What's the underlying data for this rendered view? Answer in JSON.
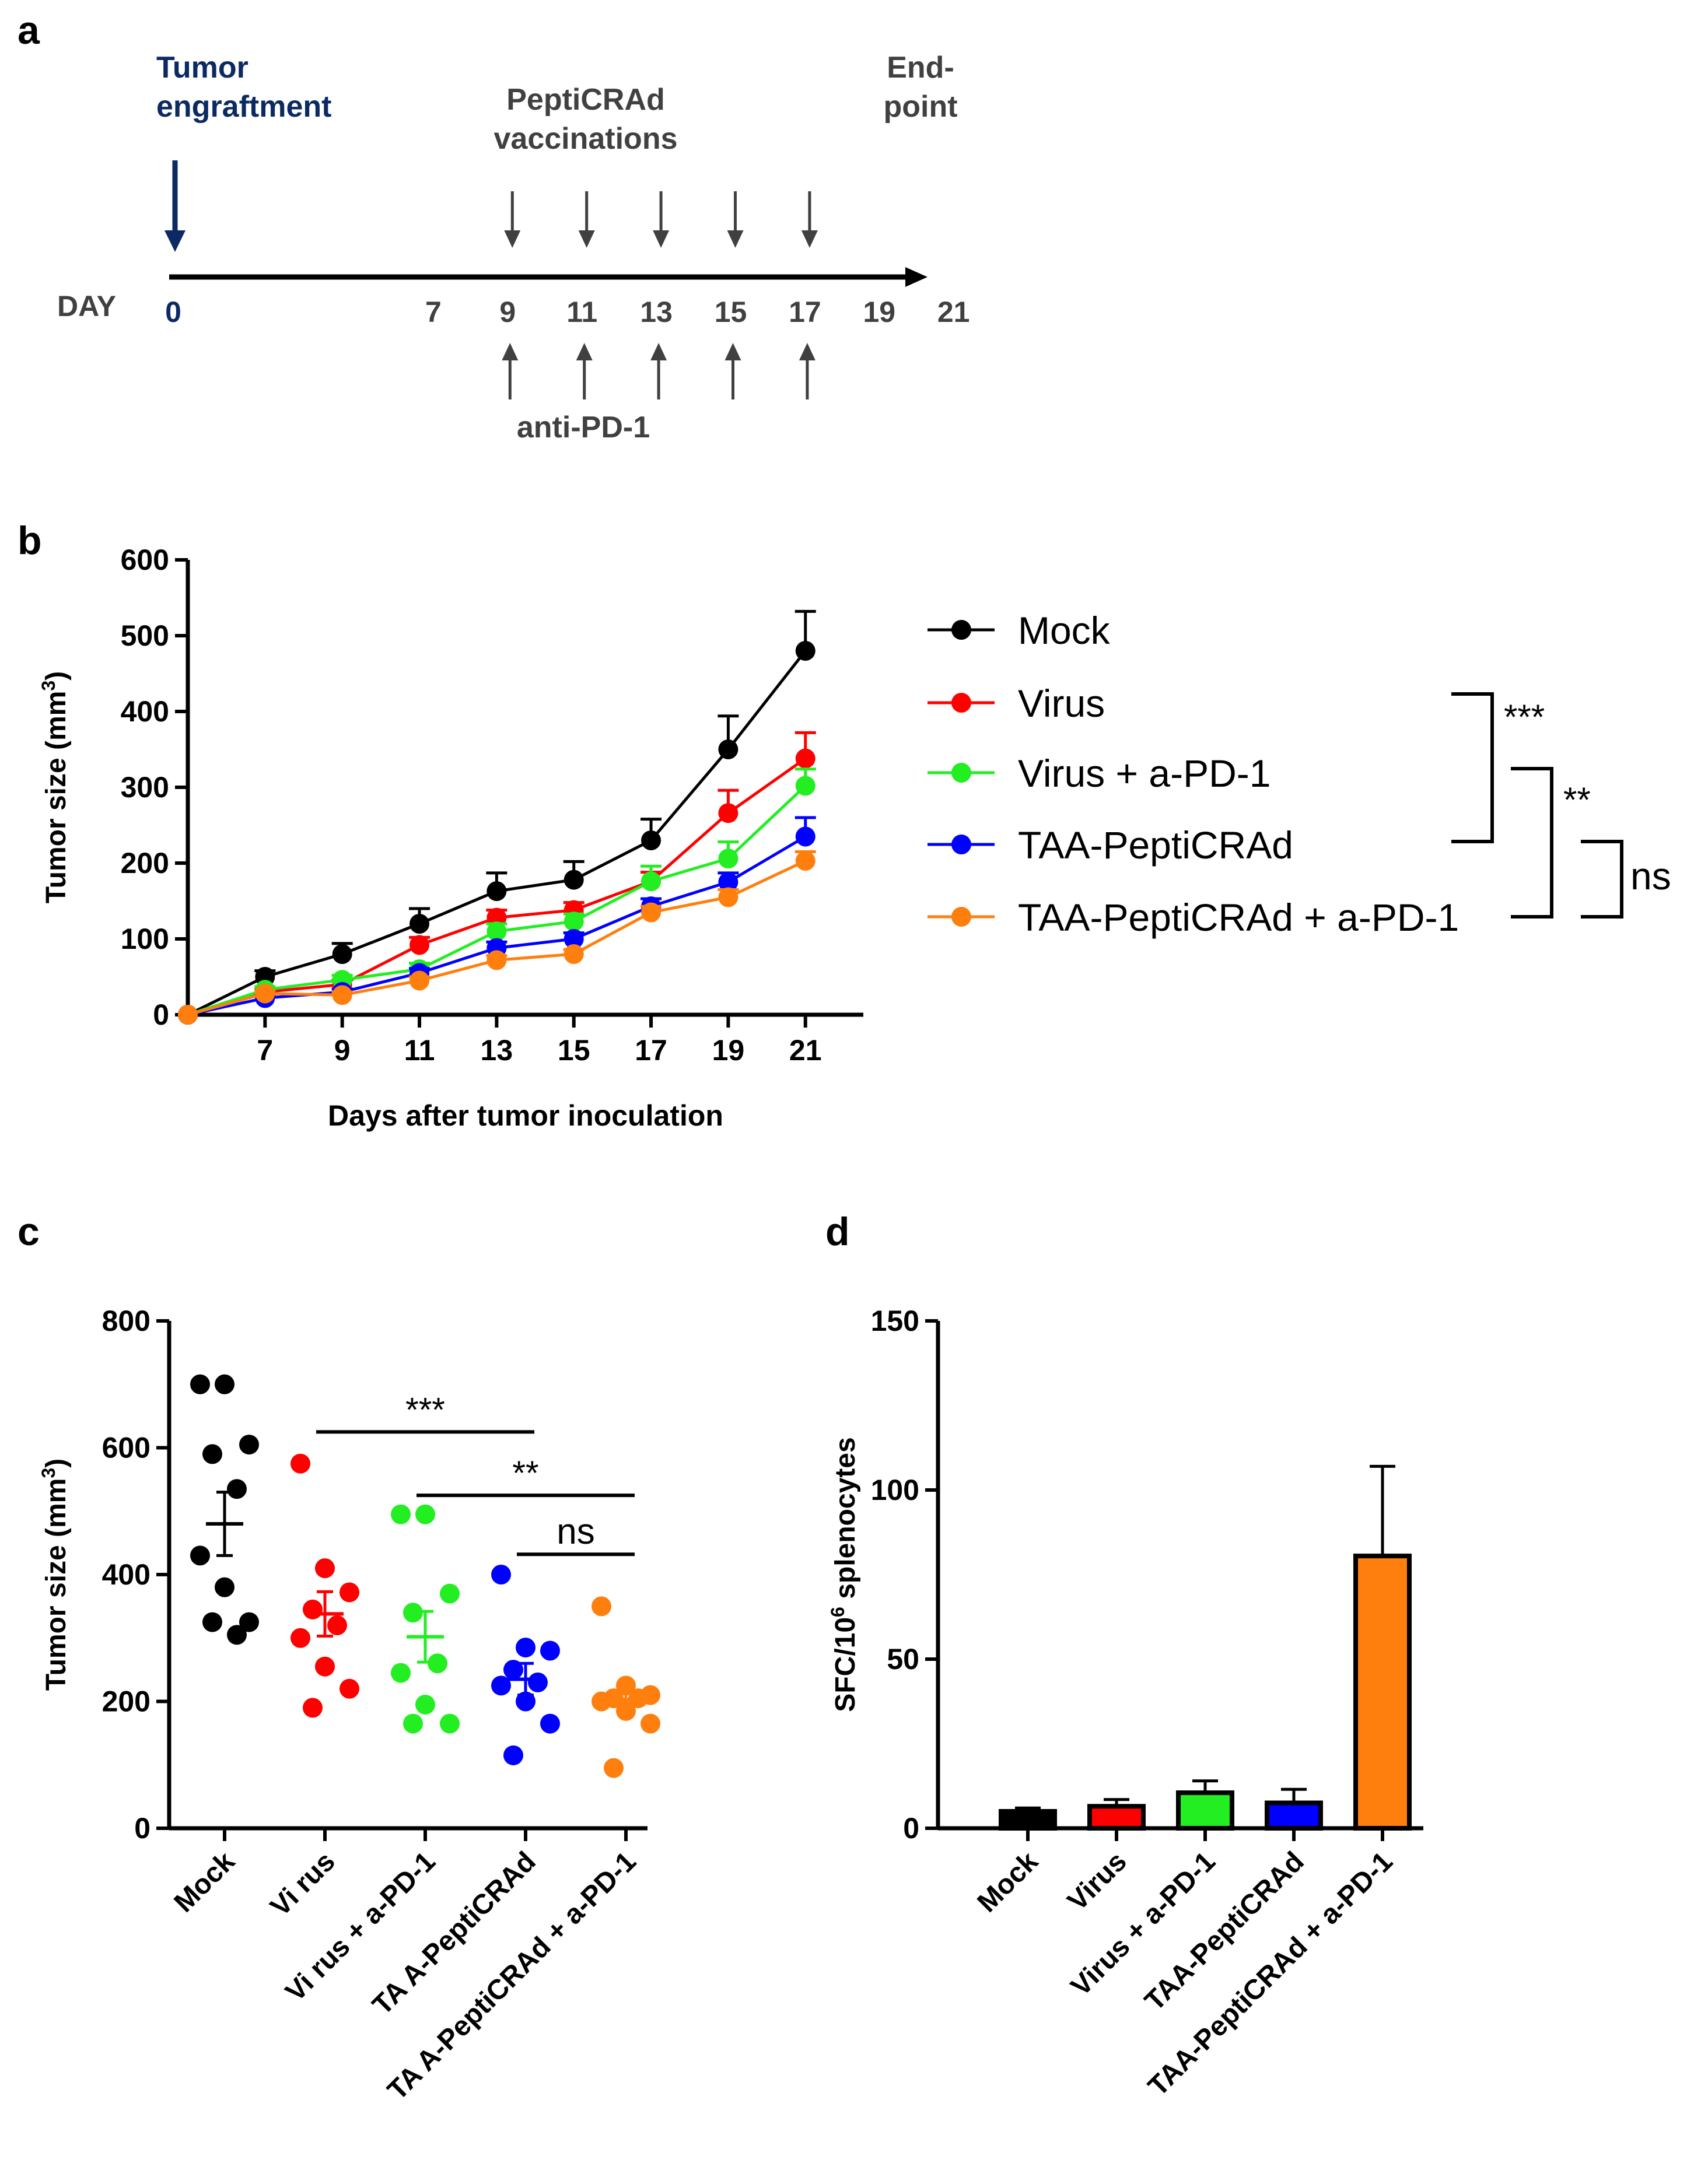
{
  "panels": {
    "a": "a",
    "b": "b",
    "c": "c",
    "d": "d"
  },
  "timeline": {
    "tumor_label": [
      "Tumor",
      "engraftment"
    ],
    "vaccination_label": [
      "PeptiCRAd",
      "vaccinations"
    ],
    "endpoint_label": [
      "End-",
      "point"
    ],
    "day_label": "DAY",
    "start_day": "0",
    "days": [
      "7",
      "9",
      "11",
      "13",
      "15",
      "17",
      "19",
      "21"
    ],
    "vaccination_days": [
      9,
      11,
      13,
      15,
      17
    ],
    "antipd1_days": [
      9,
      11,
      13,
      15,
      17
    ],
    "antipd1_label": "anti-PD-1",
    "colors": {
      "tumor": "#0b2a63",
      "arrows": "#404040",
      "text": "#404040"
    }
  },
  "chart_data": [
    {
      "panel": "b",
      "type": "line",
      "xlabel": "Days after tumor inoculation",
      "ylabel": "Tumor size  (mm³)",
      "x": [
        5,
        7,
        9,
        11,
        13,
        15,
        17,
        19,
        21
      ],
      "xticks": [
        7,
        9,
        11,
        13,
        15,
        17,
        19,
        21
      ],
      "xlim": [
        5,
        22.5
      ],
      "ylim": [
        0,
        600
      ],
      "yticks": [
        0,
        100,
        200,
        300,
        400,
        500,
        600
      ],
      "series": [
        {
          "name": "Mock",
          "color": "#000000",
          "values": [
            0,
            50,
            80,
            120,
            163,
            178,
            230,
            350,
            480
          ],
          "err": [
            0,
            8,
            14,
            20,
            24,
            24,
            28,
            44,
            52
          ]
        },
        {
          "name": "Virus",
          "color": "#ff0000",
          "values": [
            0,
            30,
            40,
            92,
            128,
            138,
            176,
            266,
            338
          ],
          "err": [
            0,
            4,
            6,
            10,
            10,
            10,
            12,
            30,
            34
          ]
        },
        {
          "name": "Virus + a-PD-1",
          "color": "#22ee22",
          "values": [
            0,
            33,
            46,
            60,
            110,
            123,
            176,
            206,
            302
          ],
          "err": [
            0,
            4,
            6,
            8,
            10,
            10,
            20,
            22,
            22
          ]
        },
        {
          "name": "TAA-PeptiCRAd",
          "color": "#0000ff",
          "values": [
            0,
            22,
            30,
            55,
            88,
            100,
            143,
            175,
            235
          ],
          "err": [
            0,
            3,
            4,
            6,
            8,
            8,
            10,
            12,
            25
          ]
        },
        {
          "name": "TAA-PeptiCRAd + a-PD-1",
          "color": "#ff7f0e",
          "values": [
            0,
            28,
            26,
            45,
            72,
            80,
            135,
            155,
            203
          ],
          "err": [
            0,
            3,
            4,
            5,
            6,
            6,
            8,
            10,
            12
          ]
        }
      ],
      "legend": "right",
      "significance": [
        "***",
        "**",
        "ns"
      ]
    },
    {
      "panel": "c",
      "type": "scatter",
      "ylabel": "Tumor size  (mm³)",
      "ylim": [
        0,
        800
      ],
      "yticks": [
        0,
        200,
        400,
        600,
        800
      ],
      "categories": [
        "Mock",
        "Vi rus",
        "Vi rus + a-PD-1",
        "TA A-PeptiCRAd",
        "TA A-PeptiCRAd + a-PD-1"
      ],
      "colors": [
        "#000000",
        "#ff0000",
        "#22ee22",
        "#0000ff",
        "#ff7f0e"
      ],
      "points": [
        [
          700,
          700,
          605,
          590,
          535,
          430,
          380,
          325,
          325,
          305
        ],
        [
          575,
          410,
          372,
          345,
          320,
          300,
          255,
          220,
          190
        ],
        [
          495,
          495,
          370,
          340,
          260,
          245,
          195,
          165,
          165
        ],
        [
          400,
          285,
          280,
          250,
          230,
          225,
          200,
          165,
          115
        ],
        [
          350,
          225,
          210,
          205,
          205,
          200,
          185,
          165,
          95
        ]
      ],
      "means": [
        480,
        338,
        302,
        235,
        203
      ],
      "sem": [
        50,
        35,
        40,
        25,
        20
      ],
      "significance": [
        {
          "label": "***",
          "from": 1,
          "to": 3,
          "y": 625
        },
        {
          "label": "**",
          "from": 2,
          "to": 4,
          "y": 525
        },
        {
          "label": "ns",
          "from": 3,
          "to": 4,
          "y": 432
        }
      ]
    },
    {
      "panel": "d",
      "type": "bar",
      "ylabel": "SFC/10⁶ splenocytes",
      "ylim": [
        0,
        150
      ],
      "yticks": [
        0,
        50,
        100,
        150
      ],
      "categories": [
        "Mock",
        "Virus",
        "Virus + a-PD-1",
        "TAA-PeptiCRAd",
        "TAA-PeptiCRAd + a-PD-1"
      ],
      "colors": [
        "#000000",
        "#ff0000",
        "#22ee22",
        "#0000ff",
        "#ff7f0e"
      ],
      "values": [
        5,
        6.5,
        10.5,
        7.5,
        80.5
      ],
      "err": [
        1,
        2,
        3.5,
        4,
        26.5
      ]
    }
  ]
}
